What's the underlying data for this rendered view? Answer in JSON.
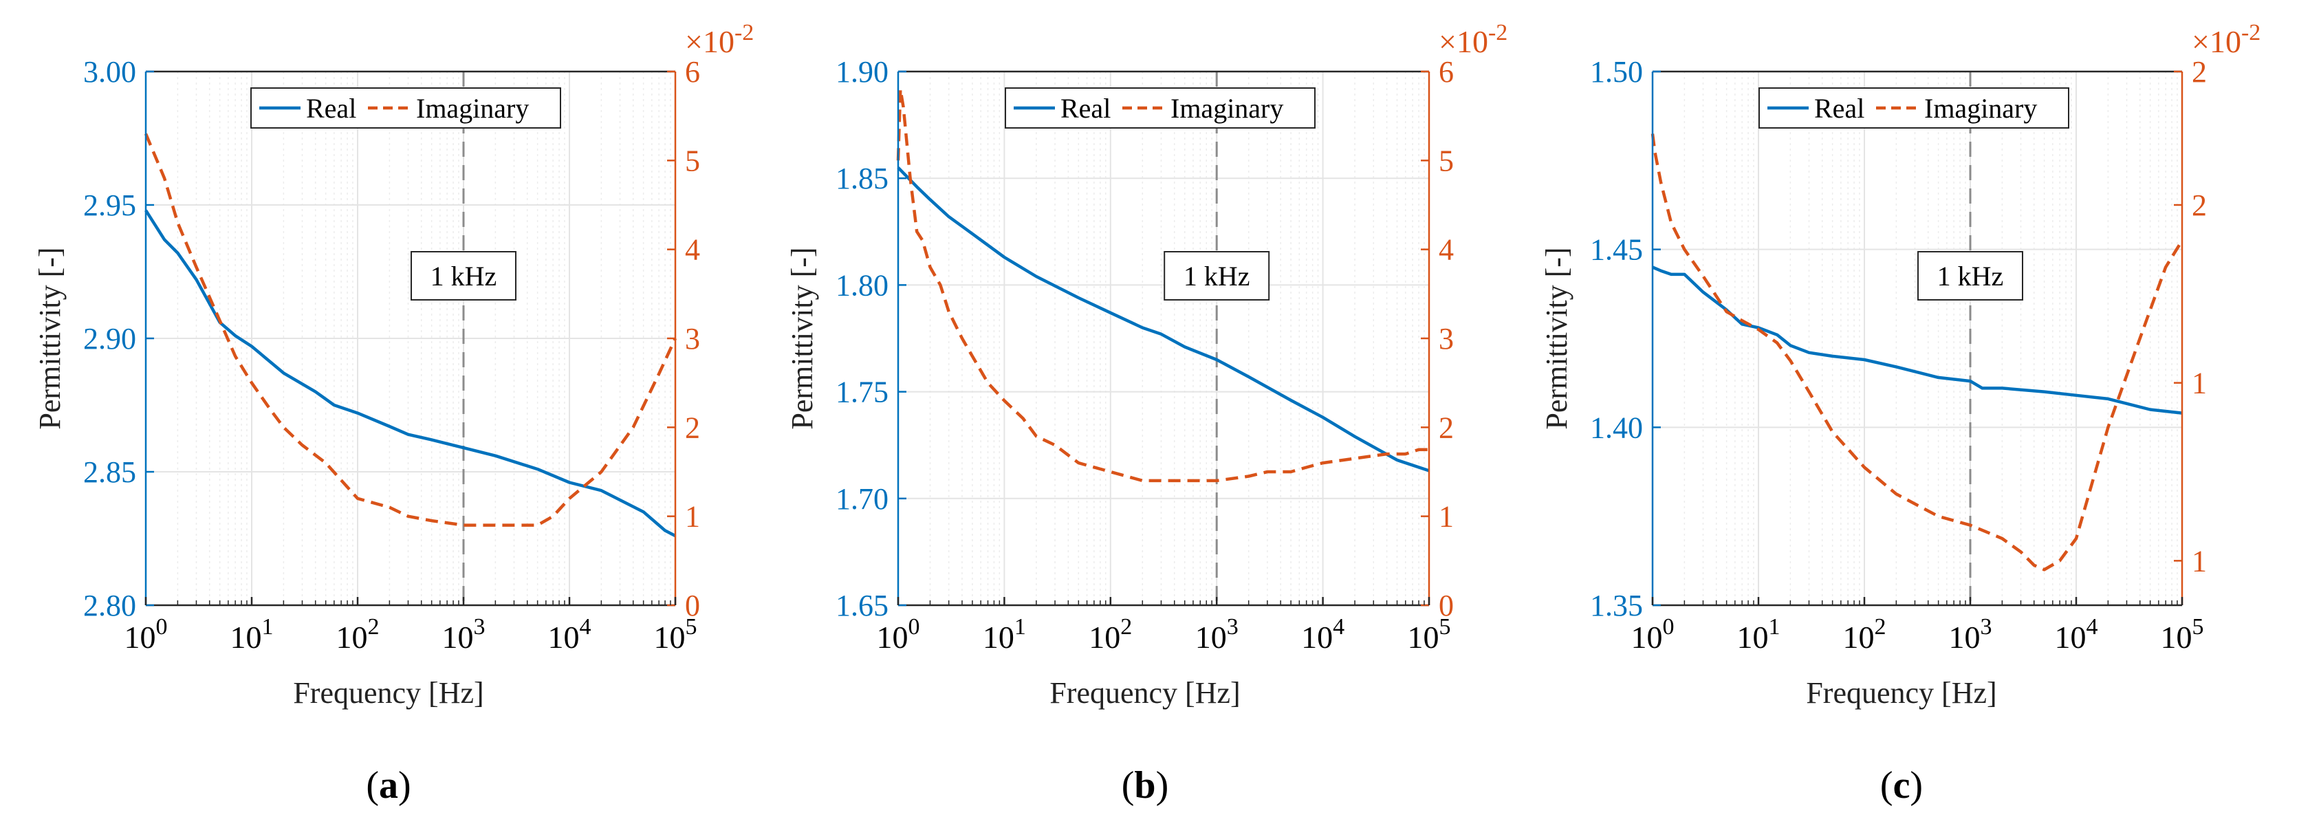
{
  "colors": {
    "real": "#0072BD",
    "imaginary": "#D95319",
    "axis_left": "#0072BD",
    "axis_right": "#D95319",
    "grid": "#e4e4e4",
    "vline": "#8c8c8c"
  },
  "chart_data": [
    {
      "type": "line",
      "panel_label": "(a)",
      "panel_letter": "a",
      "xlabel": "Frequency [Hz]",
      "ylabel": "Permittivity [-]",
      "xscale": "log",
      "xlim": [
        1,
        100000
      ],
      "xticks": [
        {
          "base": "10",
          "exp": "0"
        },
        {
          "base": "10",
          "exp": "1"
        },
        {
          "base": "10",
          "exp": "2"
        },
        {
          "base": "10",
          "exp": "3"
        },
        {
          "base": "10",
          "exp": "4"
        },
        {
          "base": "10",
          "exp": "5"
        }
      ],
      "ylim": [
        2.8,
        3.0
      ],
      "yticks": [
        "2.80",
        "2.85",
        "2.90",
        "2.95",
        "3.00"
      ],
      "y2lim": [
        0,
        6
      ],
      "y2ticks": [
        "0",
        "1",
        "2",
        "3",
        "4",
        "5",
        "6"
      ],
      "y2_exponent": {
        "prefix": "×10",
        "exp": "-2"
      },
      "legend": {
        "entries": [
          "Real",
          "Imaginary"
        ],
        "placement": "top-center"
      },
      "annotation": {
        "text": "1 kHz",
        "x": 1000
      },
      "series": [
        {
          "name": "Real",
          "axis": "left",
          "style": "solid",
          "x": [
            1,
            1.5,
            2,
            3,
            5,
            7,
            10,
            20,
            40,
            60,
            100,
            200,
            300,
            500,
            1000,
            2000,
            5000,
            10000,
            20000,
            50000,
            80000,
            100000
          ],
          "y": [
            2.948,
            2.937,
            2.932,
            2.922,
            2.906,
            2.901,
            2.897,
            2.887,
            2.88,
            2.875,
            2.872,
            2.867,
            2.864,
            2.862,
            2.859,
            2.856,
            2.851,
            2.846,
            2.843,
            2.835,
            2.828,
            2.826
          ]
        },
        {
          "name": "Imaginary",
          "axis": "right",
          "style": "dashed",
          "x": [
            1,
            1.5,
            2,
            3,
            5,
            7,
            10,
            15,
            20,
            30,
            50,
            100,
            200,
            300,
            500,
            1000,
            2000,
            5000,
            7000,
            10000,
            20000,
            40000,
            70000,
            100000
          ],
          "y": [
            5.3,
            4.8,
            4.3,
            3.8,
            3.2,
            2.8,
            2.5,
            2.2,
            2.0,
            1.8,
            1.6,
            1.2,
            1.1,
            1.0,
            0.95,
            0.9,
            0.9,
            0.9,
            1.0,
            1.2,
            1.5,
            2.0,
            2.6,
            3.0
          ]
        }
      ]
    },
    {
      "type": "line",
      "panel_label": "(b)",
      "panel_letter": "b",
      "xlabel": "Frequency [Hz]",
      "ylabel": "Permittivity [-]",
      "xscale": "log",
      "xlim": [
        1,
        100000
      ],
      "xticks": [
        {
          "base": "10",
          "exp": "0"
        },
        {
          "base": "10",
          "exp": "1"
        },
        {
          "base": "10",
          "exp": "2"
        },
        {
          "base": "10",
          "exp": "3"
        },
        {
          "base": "10",
          "exp": "4"
        },
        {
          "base": "10",
          "exp": "5"
        }
      ],
      "ylim": [
        1.65,
        1.9
      ],
      "yticks": [
        "1.65",
        "1.70",
        "1.75",
        "1.80",
        "1.85",
        "1.90"
      ],
      "y2lim": [
        0,
        6
      ],
      "y2ticks": [
        "0",
        "1",
        "2",
        "3",
        "4",
        "5",
        "6"
      ],
      "y2_exponent": {
        "prefix": "×10",
        "exp": "-2"
      },
      "legend": {
        "entries": [
          "Real",
          "Imaginary"
        ],
        "placement": "top-center"
      },
      "annotation": {
        "text": "1 kHz",
        "x": 1000
      },
      "series": [
        {
          "name": "Real",
          "axis": "left",
          "style": "solid",
          "x": [
            1,
            1.5,
            2,
            3,
            5,
            10,
            20,
            50,
            100,
            200,
            300,
            500,
            1000,
            2000,
            5000,
            10000,
            20000,
            50000,
            100000
          ],
          "y": [
            1.855,
            1.846,
            1.84,
            1.832,
            1.824,
            1.813,
            1.804,
            1.794,
            1.787,
            1.78,
            1.777,
            1.771,
            1.765,
            1.757,
            1.746,
            1.738,
            1.729,
            1.718,
            1.713
          ]
        },
        {
          "name": "Imaginary",
          "axis": "right",
          "style": "dashed",
          "x": [
            1,
            1.05,
            1.12,
            1.3,
            1.5,
            1.7,
            2,
            2.5,
            3,
            4,
            5,
            7,
            10,
            15,
            20,
            30,
            50,
            100,
            200,
            300,
            500,
            1000,
            2000,
            3000,
            5000,
            7000,
            10000,
            20000,
            40000,
            60000,
            80000,
            100000
          ],
          "y": [
            5.0,
            5.8,
            5.6,
            4.8,
            4.2,
            4.1,
            3.8,
            3.6,
            3.3,
            3.0,
            2.8,
            2.5,
            2.3,
            2.1,
            1.9,
            1.8,
            1.6,
            1.5,
            1.4,
            1.4,
            1.4,
            1.4,
            1.45,
            1.5,
            1.5,
            1.55,
            1.6,
            1.65,
            1.7,
            1.7,
            1.75,
            1.75
          ]
        }
      ]
    },
    {
      "type": "line",
      "panel_label": "(c)",
      "panel_letter": "c",
      "xlabel": "Frequency [Hz]",
      "ylabel": "Permittivity [-]",
      "xscale": "log",
      "xlim": [
        1,
        100000
      ],
      "xticks": [
        {
          "base": "10",
          "exp": "0"
        },
        {
          "base": "10",
          "exp": "1"
        },
        {
          "base": "10",
          "exp": "2"
        },
        {
          "base": "10",
          "exp": "3"
        },
        {
          "base": "10",
          "exp": "4"
        },
        {
          "base": "10",
          "exp": "5"
        }
      ],
      "ylim": [
        1.35,
        1.5
      ],
      "yticks": [
        "1.35",
        "1.40",
        "1.45",
        "1.50"
      ],
      "y2lim": [
        0.9,
        2.1
      ],
      "y2_tick_positions": [
        1,
        1.4,
        1.8,
        2.1
      ],
      "y2ticks": [
        "1",
        "1",
        "2",
        "2"
      ],
      "y2_exponent": {
        "prefix": "×10",
        "exp": "-2"
      },
      "legend": {
        "entries": [
          "Real",
          "Imaginary"
        ],
        "placement": "top-center"
      },
      "annotation": {
        "text": "1 kHz",
        "x": 1000
      },
      "series": [
        {
          "name": "Real",
          "axis": "left",
          "style": "solid",
          "x": [
            1,
            1.2,
            1.5,
            2,
            3,
            5,
            7,
            10,
            15,
            20,
            30,
            50,
            100,
            200,
            500,
            1000,
            1300,
            2000,
            5000,
            10000,
            20000,
            50000,
            100000
          ],
          "y": [
            1.445,
            1.444,
            1.443,
            1.443,
            1.438,
            1.433,
            1.429,
            1.428,
            1.426,
            1.423,
            1.421,
            1.42,
            1.419,
            1.417,
            1.414,
            1.413,
            1.411,
            1.411,
            1.41,
            1.409,
            1.408,
            1.405,
            1.404
          ]
        },
        {
          "name": "Imaginary",
          "axis": "right",
          "style": "dashed",
          "x": [
            1,
            1.05,
            1.2,
            1.5,
            2,
            3,
            5,
            7,
            10,
            15,
            20,
            30,
            50,
            100,
            200,
            500,
            1000,
            2000,
            3000,
            4000,
            5000,
            7000,
            10000,
            20000,
            40000,
            70000,
            100000
          ],
          "y": [
            1.96,
            1.92,
            1.85,
            1.76,
            1.7,
            1.64,
            1.56,
            1.54,
            1.52,
            1.49,
            1.45,
            1.38,
            1.29,
            1.21,
            1.15,
            1.1,
            1.08,
            1.05,
            1.02,
            0.99,
            0.98,
            1.0,
            1.05,
            1.3,
            1.5,
            1.66,
            1.72
          ]
        }
      ]
    }
  ]
}
